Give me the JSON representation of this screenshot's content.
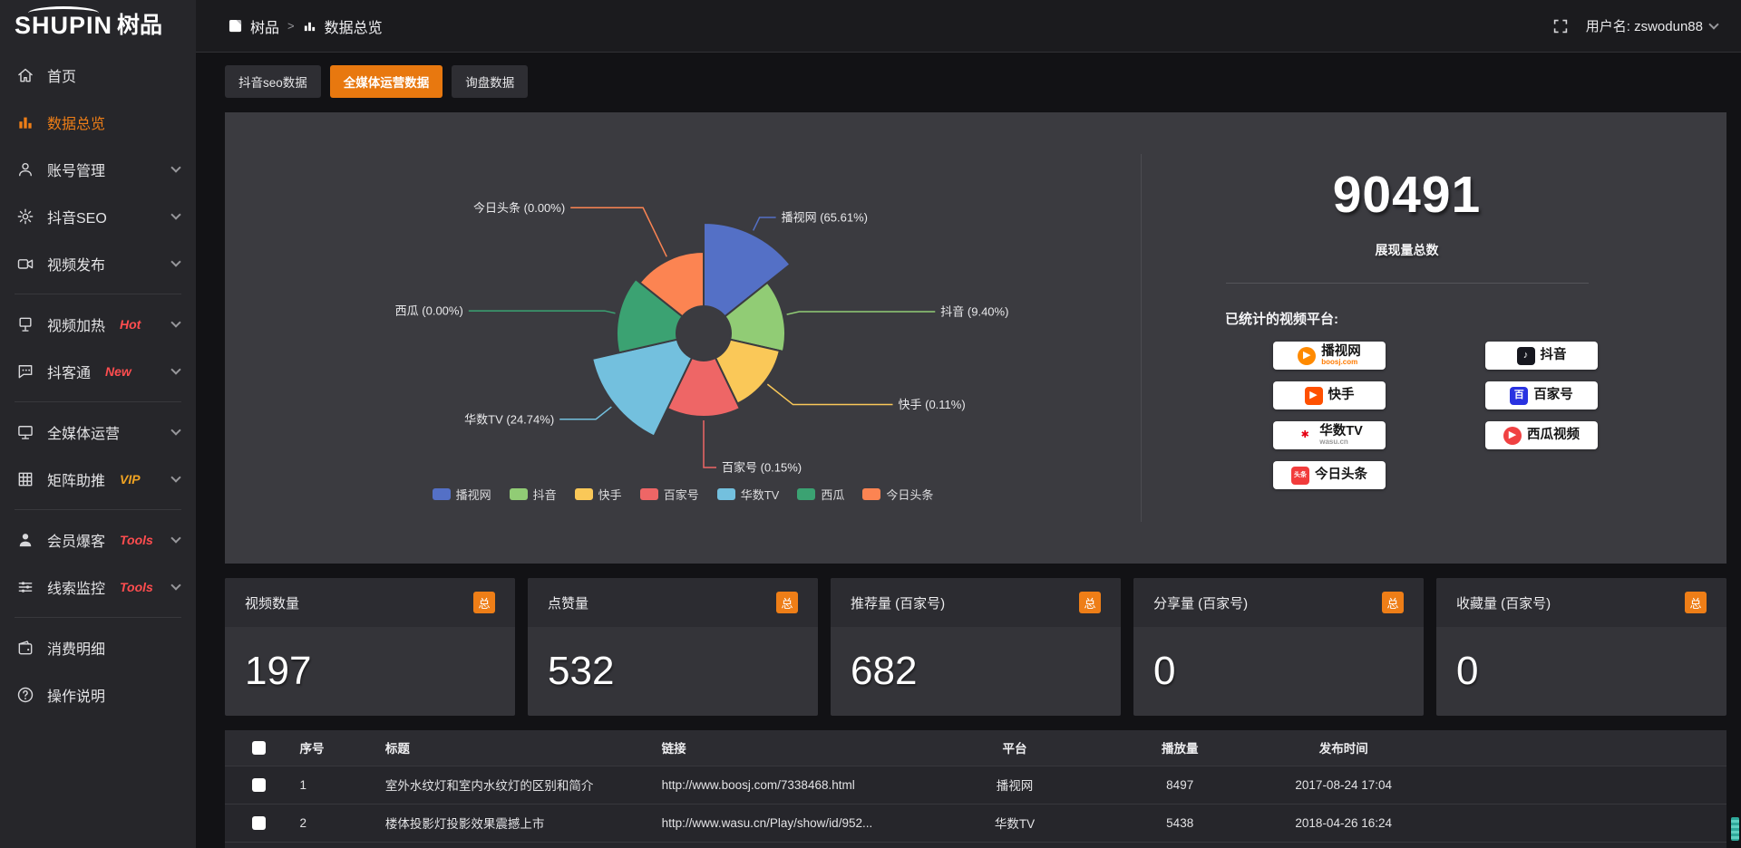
{
  "ui_colors": {
    "accent": "#ee7e17",
    "tab_active": "#e8780f",
    "link": "#f0861f",
    "hot_badge": "#ff4d4f",
    "vip_badge": "#f0a322",
    "panel_bg": "#3b3b40"
  },
  "sidebar": {
    "logo_en": "SHUPIN",
    "logo_cn": "树品",
    "items": [
      {
        "label": "首页",
        "icon": "home",
        "active": false,
        "chevron": false,
        "badge": "",
        "badge_color": "",
        "group_end": false
      },
      {
        "label": "数据总览",
        "icon": "bar-chart",
        "active": true,
        "chevron": false,
        "badge": "",
        "badge_color": "",
        "group_end": false
      },
      {
        "label": "账号管理",
        "icon": "user",
        "active": false,
        "chevron": true,
        "badge": "",
        "badge_color": "",
        "group_end": false
      },
      {
        "label": "抖音SEO",
        "icon": "gear",
        "active": false,
        "chevron": true,
        "badge": "",
        "badge_color": "",
        "group_end": false
      },
      {
        "label": "视频发布",
        "icon": "video-camera",
        "active": false,
        "chevron": true,
        "badge": "",
        "badge_color": "",
        "group_end": true
      },
      {
        "label": "视频加热",
        "icon": "screen-heat",
        "active": false,
        "chevron": true,
        "badge": "Hot",
        "badge_color": "#ff4d4f",
        "group_end": false
      },
      {
        "label": "抖客通",
        "icon": "chat",
        "active": false,
        "chevron": true,
        "badge": "New",
        "badge_color": "#ff4d4f",
        "group_end": true
      },
      {
        "label": "全媒体运营",
        "icon": "monitor",
        "active": false,
        "chevron": true,
        "badge": "",
        "badge_color": "",
        "group_end": false
      },
      {
        "label": "矩阵助推",
        "icon": "grid",
        "active": false,
        "chevron": true,
        "badge": "VIP",
        "badge_color": "#f0a322",
        "group_end": true
      },
      {
        "label": "会员爆客",
        "icon": "member",
        "active": false,
        "chevron": true,
        "badge": "Tools",
        "badge_color": "#ff4d4f",
        "group_end": false
      },
      {
        "label": "线索监控",
        "icon": "sliders",
        "active": false,
        "chevron": true,
        "badge": "Tools",
        "badge_color": "#ff4d4f",
        "group_end": true
      },
      {
        "label": "消费明细",
        "icon": "wallet",
        "active": false,
        "chevron": false,
        "badge": "",
        "badge_color": "",
        "group_end": false
      },
      {
        "label": "操作说明",
        "icon": "help",
        "active": false,
        "chevron": false,
        "badge": "",
        "badge_color": "",
        "group_end": false
      }
    ]
  },
  "topbar": {
    "breadcrumb": {
      "root": "树品",
      "separator": ">",
      "current": "数据总览"
    },
    "user_label": "用户名: zswodun88"
  },
  "tabs": [
    {
      "label": "抖音seo数据",
      "active": false
    },
    {
      "label": "全媒体运营数据",
      "active": true
    },
    {
      "label": "询盘数据",
      "active": false
    }
  ],
  "chart_data": {
    "type": "pie",
    "variant": "rose",
    "title": "",
    "categories": [
      "播视网",
      "抖音",
      "快手",
      "百家号",
      "华数TV",
      "西瓜",
      "今日头条"
    ],
    "values": [
      65.61,
      9.4,
      0.11,
      0.15,
      24.74,
      0.0,
      0.0
    ],
    "unit": "%",
    "labels": [
      "播视网 (65.61%)",
      "抖音 (9.40%)",
      "快手 (0.11%)",
      "百家号 (0.15%)",
      "华数TV (24.74%)",
      "西瓜 (0.00%)",
      "今日头条 (0.00%)"
    ],
    "colors": [
      "#5470c6",
      "#91cc75",
      "#fac858",
      "#ee6666",
      "#73c0de",
      "#3ba272",
      "#fc8452"
    ],
    "legend": [
      "播视网",
      "抖音",
      "快手",
      "百家号",
      "华数TV",
      "西瓜",
      "今日头条"
    ],
    "legend_position": "bottom",
    "inner_radius": 30,
    "slice_radii": [
      122,
      90,
      86,
      92,
      126,
      96,
      90
    ],
    "label_radial_ext": [
      16,
      14,
      36,
      52,
      22,
      12,
      60
    ],
    "label_horiz_ext": [
      18,
      150,
      110,
      14,
      40,
      150,
      80
    ]
  },
  "summary": {
    "total": "90491",
    "total_label": "展现量总数",
    "platforms_label": "已统计的视频平台:",
    "platforms": [
      {
        "name": "播视网",
        "sub": "boosj.com",
        "sub_color": "#ff7a00",
        "icon": "boosj-logo",
        "char": "▶",
        "bg": "#ff8a00",
        "fg": "#ffffff",
        "shape": "circle"
      },
      {
        "name": "抖音",
        "sub": "",
        "sub_color": "",
        "icon": "douyin-logo",
        "char": "♪",
        "bg": "#16171f",
        "fg": "#ffffff",
        "shape": "rounded"
      },
      {
        "name": "快手",
        "sub": "",
        "sub_color": "",
        "icon": "kuaishou-logo",
        "char": "▶",
        "bg": "#ff5000",
        "fg": "#ffffff",
        "shape": "rounded"
      },
      {
        "name": "百家号",
        "sub": "",
        "sub_color": "",
        "icon": "baijiahao-logo",
        "char": "百",
        "bg": "#2932e1",
        "fg": "#ffffff",
        "shape": "rounded"
      },
      {
        "name": "华数TV",
        "sub": "wasu.cn",
        "sub_color": "#999999",
        "icon": "wasu-logo",
        "char": "✱",
        "bg": "#ffffff",
        "fg": "#e60012",
        "shape": "circle"
      },
      {
        "name": "西瓜视频",
        "sub": "",
        "sub_color": "",
        "icon": "xigua-logo",
        "char": "▶",
        "bg": "#f04142",
        "fg": "#ffffff",
        "shape": "circle"
      },
      {
        "name": "今日头条",
        "sub": "",
        "sub_color": "",
        "icon": "toutiao-logo",
        "char": "头条",
        "bg": "#f23c3c",
        "fg": "#ffffff",
        "shape": "rounded"
      }
    ]
  },
  "stat_cards": [
    {
      "title": "视频数量",
      "badge": "总",
      "value": "197"
    },
    {
      "title": "点赞量",
      "badge": "总",
      "value": "532"
    },
    {
      "title": "推荐量 (百家号)",
      "badge": "总",
      "value": "682"
    },
    {
      "title": "分享量 (百家号)",
      "badge": "总",
      "value": "0"
    },
    {
      "title": "收藏量 (百家号)",
      "badge": "总",
      "value": "0"
    }
  ],
  "table": {
    "headers": [
      "序号",
      "标题",
      "链接",
      "平台",
      "播放量",
      "发布时间"
    ],
    "rows": [
      {
        "num": "1",
        "title": "室外水纹灯和室内水纹灯的区别和简介",
        "link": "http://www.boosj.com/7338468.html",
        "platform": "播视网",
        "plays": "8497",
        "time": "2017-08-24 17:04"
      },
      {
        "num": "2",
        "title": "楼体投影灯投影效果震撼上市",
        "link": "http://www.wasu.cn/Play/show/id/952...",
        "platform": "华数TV",
        "plays": "5438",
        "time": "2018-04-26 16:24"
      }
    ]
  }
}
